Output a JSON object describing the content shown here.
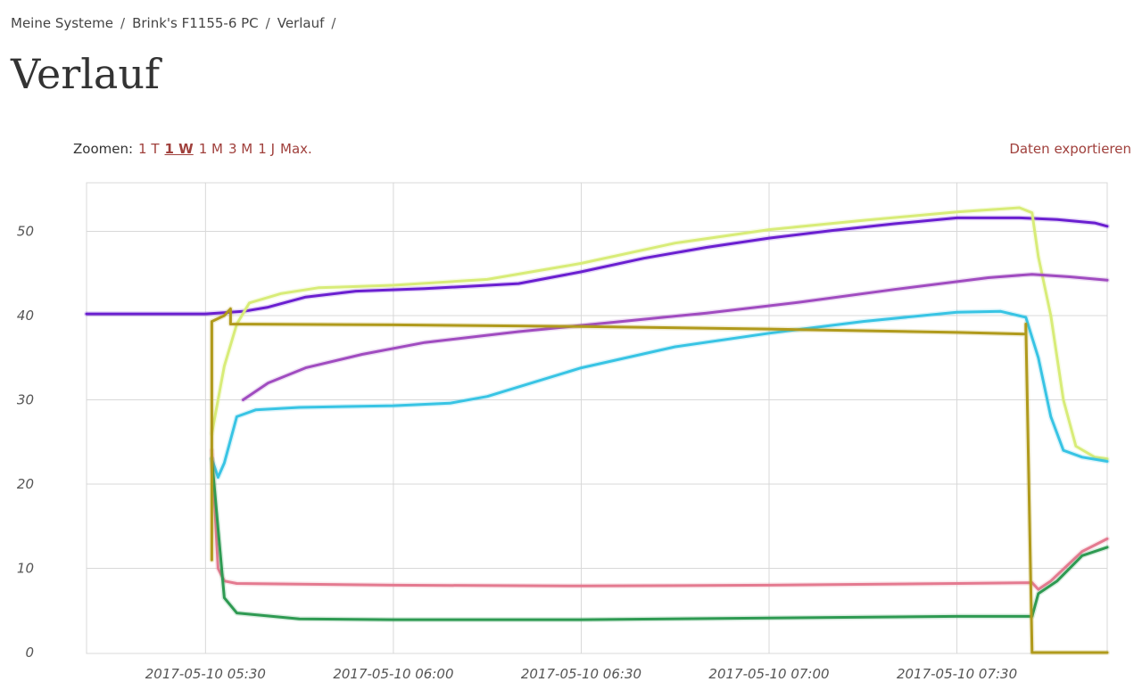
{
  "breadcrumb": {
    "items": [
      "Meine Systeme",
      "Brink's F1155-6 PC",
      "Verlauf"
    ],
    "separator": "/"
  },
  "page_title": "Verlauf",
  "zoom": {
    "label": "Zoomen:",
    "options": [
      {
        "label": "1 T",
        "active": false
      },
      {
        "label": "1 W",
        "active": true
      },
      {
        "label": "1 M",
        "active": false
      },
      {
        "label": "3 M",
        "active": false
      },
      {
        "label": "1 J",
        "active": false
      },
      {
        "label": "Max.",
        "active": false
      }
    ]
  },
  "export_label": "Daten exportieren",
  "colors": {
    "link": "#a0403c",
    "grid": "#d8d8d8"
  },
  "chart_data": {
    "type": "line",
    "title": "",
    "xlabel": "",
    "ylabel": "",
    "ylim": [
      0,
      55
    ],
    "xlim": [
      "2017-05-10 05:11",
      "2017-05-10 07:54"
    ],
    "grid": true,
    "legend": "none",
    "y_ticks": [
      0,
      10,
      20,
      30,
      40,
      50
    ],
    "x_ticks": [
      "2017-05-10 05:30",
      "2017-05-10 06:00",
      "2017-05-10 06:30",
      "2017-05-10 07:00",
      "2017-05-10 07:30"
    ],
    "series": [
      {
        "color": "#6a1fd0",
        "points": [
          [
            "2017-05-10 05:11",
            40.2
          ],
          [
            "2017-05-10 05:20",
            40.2
          ],
          [
            "2017-05-10 05:30",
            40.2
          ],
          [
            "2017-05-10 05:36",
            40.5
          ],
          [
            "2017-05-10 05:40",
            41.0
          ],
          [
            "2017-05-10 05:46",
            42.2
          ],
          [
            "2017-05-10 05:54",
            42.9
          ],
          [
            "2017-05-10 06:05",
            43.2
          ],
          [
            "2017-05-10 06:20",
            43.8
          ],
          [
            "2017-05-10 06:30",
            45.2
          ],
          [
            "2017-05-10 06:40",
            46.8
          ],
          [
            "2017-05-10 06:50",
            48.1
          ],
          [
            "2017-05-10 07:00",
            49.2
          ],
          [
            "2017-05-10 07:10",
            50.1
          ],
          [
            "2017-05-10 07:20",
            50.9
          ],
          [
            "2017-05-10 07:30",
            51.6
          ],
          [
            "2017-05-10 07:40",
            51.6
          ],
          [
            "2017-05-10 07:46",
            51.4
          ],
          [
            "2017-05-10 07:52",
            51.0
          ],
          [
            "2017-05-10 07:54",
            50.6
          ]
        ]
      },
      {
        "color": "#d8ec78",
        "points": [
          [
            "2017-05-10 05:31",
            26.0
          ],
          [
            "2017-05-10 05:33",
            34.0
          ],
          [
            "2017-05-10 05:35",
            39.0
          ],
          [
            "2017-05-10 05:37",
            41.5
          ],
          [
            "2017-05-10 05:42",
            42.6
          ],
          [
            "2017-05-10 05:48",
            43.3
          ],
          [
            "2017-05-10 06:00",
            43.6
          ],
          [
            "2017-05-10 06:15",
            44.3
          ],
          [
            "2017-05-10 06:30",
            46.2
          ],
          [
            "2017-05-10 06:45",
            48.6
          ],
          [
            "2017-05-10 07:00",
            50.2
          ],
          [
            "2017-05-10 07:15",
            51.3
          ],
          [
            "2017-05-10 07:30",
            52.3
          ],
          [
            "2017-05-10 07:40",
            52.8
          ],
          [
            "2017-05-10 07:42",
            52.2
          ],
          [
            "2017-05-10 07:43",
            47.0
          ],
          [
            "2017-05-10 07:45",
            40.0
          ],
          [
            "2017-05-10 07:47",
            30.0
          ],
          [
            "2017-05-10 07:49",
            24.5
          ],
          [
            "2017-05-10 07:52",
            23.2
          ],
          [
            "2017-05-10 07:54",
            23.0
          ]
        ]
      },
      {
        "color": "#a04cc0",
        "points": [
          [
            "2017-05-10 05:36",
            30.0
          ],
          [
            "2017-05-10 05:40",
            32.0
          ],
          [
            "2017-05-10 05:46",
            33.8
          ],
          [
            "2017-05-10 05:55",
            35.4
          ],
          [
            "2017-05-10 06:05",
            36.8
          ],
          [
            "2017-05-10 06:20",
            38.1
          ],
          [
            "2017-05-10 06:35",
            39.2
          ],
          [
            "2017-05-10 06:50",
            40.3
          ],
          [
            "2017-05-10 07:05",
            41.6
          ],
          [
            "2017-05-10 07:20",
            43.1
          ],
          [
            "2017-05-10 07:35",
            44.5
          ],
          [
            "2017-05-10 07:42",
            44.9
          ],
          [
            "2017-05-10 07:48",
            44.6
          ],
          [
            "2017-05-10 07:54",
            44.2
          ]
        ]
      },
      {
        "color": "#38c4e4",
        "points": [
          [
            "2017-05-10 05:31",
            23.0
          ],
          [
            "2017-05-10 05:32",
            20.8
          ],
          [
            "2017-05-10 05:33",
            22.5
          ],
          [
            "2017-05-10 05:35",
            28.0
          ],
          [
            "2017-05-10 05:38",
            28.8
          ],
          [
            "2017-05-10 05:45",
            29.1
          ],
          [
            "2017-05-10 06:00",
            29.3
          ],
          [
            "2017-05-10 06:09",
            29.6
          ],
          [
            "2017-05-10 06:15",
            30.4
          ],
          [
            "2017-05-10 06:30",
            33.8
          ],
          [
            "2017-05-10 06:45",
            36.3
          ],
          [
            "2017-05-10 07:00",
            37.9
          ],
          [
            "2017-05-10 07:15",
            39.3
          ],
          [
            "2017-05-10 07:30",
            40.4
          ],
          [
            "2017-05-10 07:37",
            40.5
          ],
          [
            "2017-05-10 07:41",
            39.8
          ],
          [
            "2017-05-10 07:43",
            35.0
          ],
          [
            "2017-05-10 07:45",
            28.0
          ],
          [
            "2017-05-10 07:47",
            24.0
          ],
          [
            "2017-05-10 07:50",
            23.2
          ],
          [
            "2017-05-10 07:54",
            22.7
          ]
        ]
      },
      {
        "color": "#e47a90",
        "points": [
          [
            "2017-05-10 05:31",
            24.0
          ],
          [
            "2017-05-10 05:32",
            10.0
          ],
          [
            "2017-05-10 05:33",
            8.5
          ],
          [
            "2017-05-10 05:35",
            8.2
          ],
          [
            "2017-05-10 06:00",
            8.0
          ],
          [
            "2017-05-10 06:30",
            7.9
          ],
          [
            "2017-05-10 07:00",
            8.0
          ],
          [
            "2017-05-10 07:30",
            8.2
          ],
          [
            "2017-05-10 07:42",
            8.3
          ],
          [
            "2017-05-10 07:43",
            7.5
          ],
          [
            "2017-05-10 07:45",
            8.5
          ],
          [
            "2017-05-10 07:50",
            12.0
          ],
          [
            "2017-05-10 07:54",
            13.5
          ]
        ]
      },
      {
        "color": "#2e9a52",
        "points": [
          [
            "2017-05-10 05:31",
            23.0
          ],
          [
            "2017-05-10 05:33",
            6.5
          ],
          [
            "2017-05-10 05:35",
            4.7
          ],
          [
            "2017-05-10 05:45",
            4.0
          ],
          [
            "2017-05-10 06:00",
            3.9
          ],
          [
            "2017-05-10 06:30",
            3.9
          ],
          [
            "2017-05-10 07:00",
            4.1
          ],
          [
            "2017-05-10 07:30",
            4.3
          ],
          [
            "2017-05-10 07:42",
            4.3
          ],
          [
            "2017-05-10 07:43",
            7.0
          ],
          [
            "2017-05-10 07:46",
            8.5
          ],
          [
            "2017-05-10 07:50",
            11.5
          ],
          [
            "2017-05-10 07:54",
            12.5
          ]
        ]
      },
      {
        "color": "#b09a1c",
        "points": [
          [
            "2017-05-10 05:31",
            11.0
          ],
          [
            "2017-05-10 05:31",
            39.3
          ],
          [
            "2017-05-10 05:33",
            40.0
          ],
          [
            "2017-05-10 05:34",
            40.8
          ],
          [
            "2017-05-10 05:34",
            39.0
          ],
          [
            "2017-05-10 06:00",
            38.9
          ],
          [
            "2017-05-10 06:30",
            38.7
          ],
          [
            "2017-05-10 07:00",
            38.4
          ],
          [
            "2017-05-10 07:30",
            38.0
          ],
          [
            "2017-05-10 07:41",
            37.8
          ],
          [
            "2017-05-10 07:41",
            39.0
          ],
          [
            "2017-05-10 07:42",
            0.0
          ],
          [
            "2017-05-10 07:54",
            0.0
          ]
        ]
      }
    ]
  }
}
